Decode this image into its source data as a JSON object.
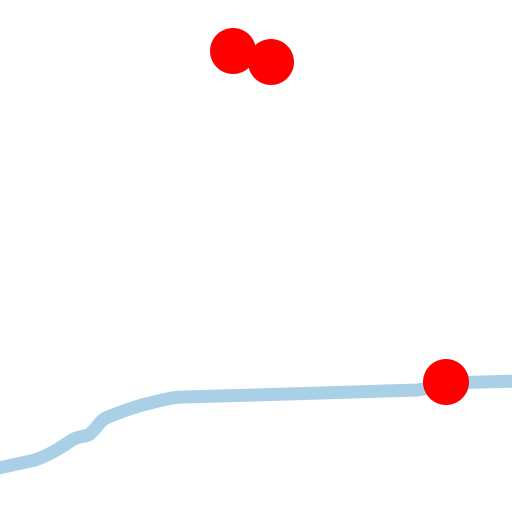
{
  "map": {
    "background_color": "#ffffff",
    "route": {
      "kind": "road",
      "color": "#a9d0e6"
    },
    "markers": [
      {
        "kind": "point",
        "color": "#ff0000"
      },
      {
        "kind": "point",
        "color": "#ff0000"
      },
      {
        "kind": "point",
        "color": "#ff0000"
      }
    ]
  }
}
